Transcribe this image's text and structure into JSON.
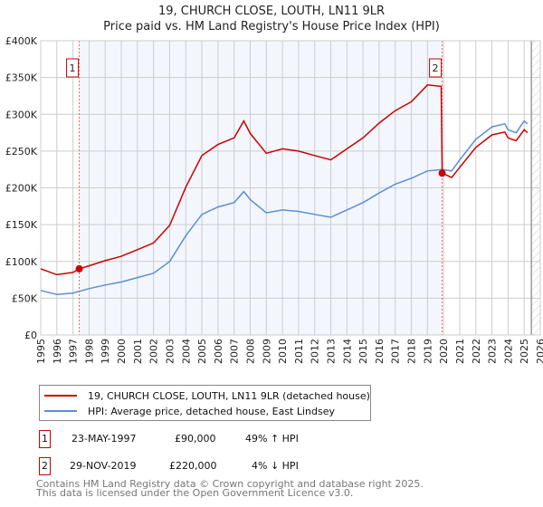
{
  "title": "19, CHURCH CLOSE, LOUTH, LN11 9LR",
  "subtitle": "Price paid vs. HM Land Registry's House Price Index (HPI)",
  "chart_data": {
    "type": "line",
    "title": "19, CHURCH CLOSE, LOUTH, LN11 9LR",
    "subtitle": "Price paid vs. HM Land Registry's House Price Index (HPI)",
    "xlim": [
      1995,
      2026
    ],
    "ylim": [
      0,
      400000
    ],
    "x_ticks": [
      "1995",
      "1996",
      "1997",
      "1998",
      "1999",
      "2000",
      "2001",
      "2002",
      "2003",
      "2004",
      "2005",
      "2006",
      "2007",
      "2008",
      "2009",
      "2010",
      "2011",
      "2012",
      "2013",
      "2014",
      "2015",
      "2016",
      "2017",
      "2018",
      "2019",
      "2020",
      "2021",
      "2022",
      "2023",
      "2024",
      "2025",
      "2026"
    ],
    "y_ticks": [
      {
        "v": 0,
        "label": "£0"
      },
      {
        "v": 50000,
        "label": "£50K"
      },
      {
        "v": 100000,
        "label": "£100K"
      },
      {
        "v": 150000,
        "label": "£150K"
      },
      {
        "v": 200000,
        "label": "£200K"
      },
      {
        "v": 250000,
        "label": "£250K"
      },
      {
        "v": 300000,
        "label": "£300K"
      },
      {
        "v": 350000,
        "label": "£350K"
      },
      {
        "v": 400000,
        "label": "£400K"
      }
    ],
    "grid": true,
    "shaded_period": [
      1997.39,
      2019.91
    ],
    "forecast_hatch_from": 2025.45,
    "series": [
      {
        "name": "19, CHURCH CLOSE, LOUTH, LN11 9LR (detached house)",
        "color": "#cc0000",
        "x": [
          1995,
          1996,
          1997,
          1997.39,
          1998,
          1999,
          2000,
          2001,
          2002,
          2003,
          2004,
          2005,
          2006,
          2007,
          2007.6,
          2008,
          2009,
          2010,
          2011,
          2012,
          2013,
          2014,
          2015,
          2016,
          2017,
          2018,
          2019,
          2019.85,
          2019.91,
          2020.5,
          2021,
          2022,
          2023,
          2023.8,
          2024,
          2024.5,
          2025,
          2025.2
        ],
        "y": [
          90000,
          82000,
          85000,
          90000,
          94000,
          101000,
          107000,
          116000,
          125000,
          149000,
          201000,
          244000,
          259000,
          268000,
          291000,
          274000,
          247000,
          253000,
          250000,
          244000,
          238000,
          253000,
          268000,
          288000,
          305000,
          317000,
          340000,
          338000,
          220000,
          214000,
          228000,
          255000,
          272000,
          276000,
          268000,
          264000,
          279000,
          275000
        ]
      },
      {
        "name": "HPI: Average price, detached house, East Lindsey",
        "color": "#5b8fd4",
        "x": [
          1995,
          1996,
          1997,
          1998,
          1999,
          2000,
          2001,
          2002,
          2003,
          2004,
          2005,
          2006,
          2007,
          2007.6,
          2008,
          2009,
          2010,
          2011,
          2012,
          2013,
          2014,
          2015,
          2016,
          2017,
          2018,
          2019,
          2019.9,
          2020.5,
          2021,
          2022,
          2023,
          2023.8,
          2024,
          2024.5,
          2025,
          2025.2
        ],
        "y": [
          60600,
          55000,
          57000,
          63000,
          68000,
          72000,
          78000,
          84000,
          100000,
          135000,
          164000,
          174000,
          180000,
          195000,
          184000,
          166000,
          170000,
          168000,
          164000,
          160000,
          170000,
          180000,
          193000,
          205000,
          213000,
          223000,
          225000,
          223000,
          238000,
          266000,
          283000,
          287000,
          279000,
          275000,
          291000,
          287000
        ]
      }
    ],
    "sales": [
      {
        "label": "1",
        "x": 1997.39,
        "price": 90000
      },
      {
        "label": "2",
        "x": 2019.91,
        "price": 220000
      }
    ]
  },
  "legend": {
    "red": "19, CHURCH CLOSE, LOUTH, LN11 9LR (detached house)",
    "blue": "HPI: Average price, detached house, East Lindsey"
  },
  "table": [
    {
      "n": "1",
      "date": "23-MAY-1997",
      "price": "£90,000",
      "hpi": "49% ↑ HPI"
    },
    {
      "n": "2",
      "date": "29-NOV-2019",
      "price": "£220,000",
      "hpi": "4% ↓ HPI"
    }
  ],
  "footer": [
    "Contains HM Land Registry data © Crown copyright and database right 2025.",
    "This data is licensed under the Open Government Licence v3.0."
  ]
}
